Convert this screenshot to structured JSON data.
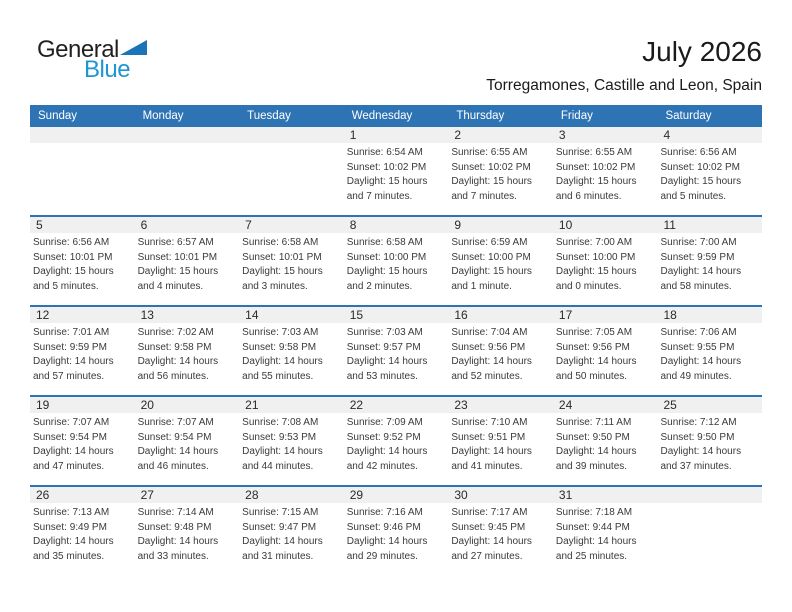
{
  "logo": {
    "text_black": "General",
    "text_blue": "Blue",
    "triangle_icon": "blue-right-triangle"
  },
  "header": {
    "title": "July 2026",
    "subtitle": "Torregamones, Castille and Leon, Spain"
  },
  "colors": {
    "header_bg": "#2E74B5",
    "week_divider": "#2E74B5",
    "day_band_bg": "#F0F0F0",
    "weekday_text": "#FFFFFF",
    "body_text": "#3A3A3A",
    "day_number_text": "#2B2B2B",
    "title_text": "#1A1A1A",
    "logo_general": "#231F20",
    "logo_blue": "#2095D3",
    "logo_triangle": "#1B74B7"
  },
  "calendar": {
    "weekday_headers": [
      "Sunday",
      "Monday",
      "Tuesday",
      "Wednesday",
      "Thursday",
      "Friday",
      "Saturday"
    ],
    "weeks": [
      {
        "days": [
          null,
          null,
          null,
          {
            "day": "1",
            "line1": "Sunrise: 6:54 AM",
            "line2": "Sunset: 10:02 PM",
            "line3": "Daylight: 15 hours",
            "line4": "and 7 minutes."
          },
          {
            "day": "2",
            "line1": "Sunrise: 6:55 AM",
            "line2": "Sunset: 10:02 PM",
            "line3": "Daylight: 15 hours",
            "line4": "and 7 minutes."
          },
          {
            "day": "3",
            "line1": "Sunrise: 6:55 AM",
            "line2": "Sunset: 10:02 PM",
            "line3": "Daylight: 15 hours",
            "line4": "and 6 minutes."
          },
          {
            "day": "4",
            "line1": "Sunrise: 6:56 AM",
            "line2": "Sunset: 10:02 PM",
            "line3": "Daylight: 15 hours",
            "line4": "and 5 minutes."
          }
        ]
      },
      {
        "days": [
          {
            "day": "5",
            "line1": "Sunrise: 6:56 AM",
            "line2": "Sunset: 10:01 PM",
            "line3": "Daylight: 15 hours",
            "line4": "and 5 minutes."
          },
          {
            "day": "6",
            "line1": "Sunrise: 6:57 AM",
            "line2": "Sunset: 10:01 PM",
            "line3": "Daylight: 15 hours",
            "line4": "and 4 minutes."
          },
          {
            "day": "7",
            "line1": "Sunrise: 6:58 AM",
            "line2": "Sunset: 10:01 PM",
            "line3": "Daylight: 15 hours",
            "line4": "and 3 minutes."
          },
          {
            "day": "8",
            "line1": "Sunrise: 6:58 AM",
            "line2": "Sunset: 10:00 PM",
            "line3": "Daylight: 15 hours",
            "line4": "and 2 minutes."
          },
          {
            "day": "9",
            "line1": "Sunrise: 6:59 AM",
            "line2": "Sunset: 10:00 PM",
            "line3": "Daylight: 15 hours",
            "line4": "and 1 minute."
          },
          {
            "day": "10",
            "line1": "Sunrise: 7:00 AM",
            "line2": "Sunset: 10:00 PM",
            "line3": "Daylight: 15 hours",
            "line4": "and 0 minutes."
          },
          {
            "day": "11",
            "line1": "Sunrise: 7:00 AM",
            "line2": "Sunset: 9:59 PM",
            "line3": "Daylight: 14 hours",
            "line4": "and 58 minutes."
          }
        ]
      },
      {
        "days": [
          {
            "day": "12",
            "line1": "Sunrise: 7:01 AM",
            "line2": "Sunset: 9:59 PM",
            "line3": "Daylight: 14 hours",
            "line4": "and 57 minutes."
          },
          {
            "day": "13",
            "line1": "Sunrise: 7:02 AM",
            "line2": "Sunset: 9:58 PM",
            "line3": "Daylight: 14 hours",
            "line4": "and 56 minutes."
          },
          {
            "day": "14",
            "line1": "Sunrise: 7:03 AM",
            "line2": "Sunset: 9:58 PM",
            "line3": "Daylight: 14 hours",
            "line4": "and 55 minutes."
          },
          {
            "day": "15",
            "line1": "Sunrise: 7:03 AM",
            "line2": "Sunset: 9:57 PM",
            "line3": "Daylight: 14 hours",
            "line4": "and 53 minutes."
          },
          {
            "day": "16",
            "line1": "Sunrise: 7:04 AM",
            "line2": "Sunset: 9:56 PM",
            "line3": "Daylight: 14 hours",
            "line4": "and 52 minutes."
          },
          {
            "day": "17",
            "line1": "Sunrise: 7:05 AM",
            "line2": "Sunset: 9:56 PM",
            "line3": "Daylight: 14 hours",
            "line4": "and 50 minutes."
          },
          {
            "day": "18",
            "line1": "Sunrise: 7:06 AM",
            "line2": "Sunset: 9:55 PM",
            "line3": "Daylight: 14 hours",
            "line4": "and 49 minutes."
          }
        ]
      },
      {
        "days": [
          {
            "day": "19",
            "line1": "Sunrise: 7:07 AM",
            "line2": "Sunset: 9:54 PM",
            "line3": "Daylight: 14 hours",
            "line4": "and 47 minutes."
          },
          {
            "day": "20",
            "line1": "Sunrise: 7:07 AM",
            "line2": "Sunset: 9:54 PM",
            "line3": "Daylight: 14 hours",
            "line4": "and 46 minutes."
          },
          {
            "day": "21",
            "line1": "Sunrise: 7:08 AM",
            "line2": "Sunset: 9:53 PM",
            "line3": "Daylight: 14 hours",
            "line4": "and 44 minutes."
          },
          {
            "day": "22",
            "line1": "Sunrise: 7:09 AM",
            "line2": "Sunset: 9:52 PM",
            "line3": "Daylight: 14 hours",
            "line4": "and 42 minutes."
          },
          {
            "day": "23",
            "line1": "Sunrise: 7:10 AM",
            "line2": "Sunset: 9:51 PM",
            "line3": "Daylight: 14 hours",
            "line4": "and 41 minutes."
          },
          {
            "day": "24",
            "line1": "Sunrise: 7:11 AM",
            "line2": "Sunset: 9:50 PM",
            "line3": "Daylight: 14 hours",
            "line4": "and 39 minutes."
          },
          {
            "day": "25",
            "line1": "Sunrise: 7:12 AM",
            "line2": "Sunset: 9:50 PM",
            "line3": "Daylight: 14 hours",
            "line4": "and 37 minutes."
          }
        ]
      },
      {
        "days": [
          {
            "day": "26",
            "line1": "Sunrise: 7:13 AM",
            "line2": "Sunset: 9:49 PM",
            "line3": "Daylight: 14 hours",
            "line4": "and 35 minutes."
          },
          {
            "day": "27",
            "line1": "Sunrise: 7:14 AM",
            "line2": "Sunset: 9:48 PM",
            "line3": "Daylight: 14 hours",
            "line4": "and 33 minutes."
          },
          {
            "day": "28",
            "line1": "Sunrise: 7:15 AM",
            "line2": "Sunset: 9:47 PM",
            "line3": "Daylight: 14 hours",
            "line4": "and 31 minutes."
          },
          {
            "day": "29",
            "line1": "Sunrise: 7:16 AM",
            "line2": "Sunset: 9:46 PM",
            "line3": "Daylight: 14 hours",
            "line4": "and 29 minutes."
          },
          {
            "day": "30",
            "line1": "Sunrise: 7:17 AM",
            "line2": "Sunset: 9:45 PM",
            "line3": "Daylight: 14 hours",
            "line4": "and 27 minutes."
          },
          {
            "day": "31",
            "line1": "Sunrise: 7:18 AM",
            "line2": "Sunset: 9:44 PM",
            "line3": "Daylight: 14 hours",
            "line4": "and 25 minutes."
          },
          null
        ]
      }
    ]
  }
}
